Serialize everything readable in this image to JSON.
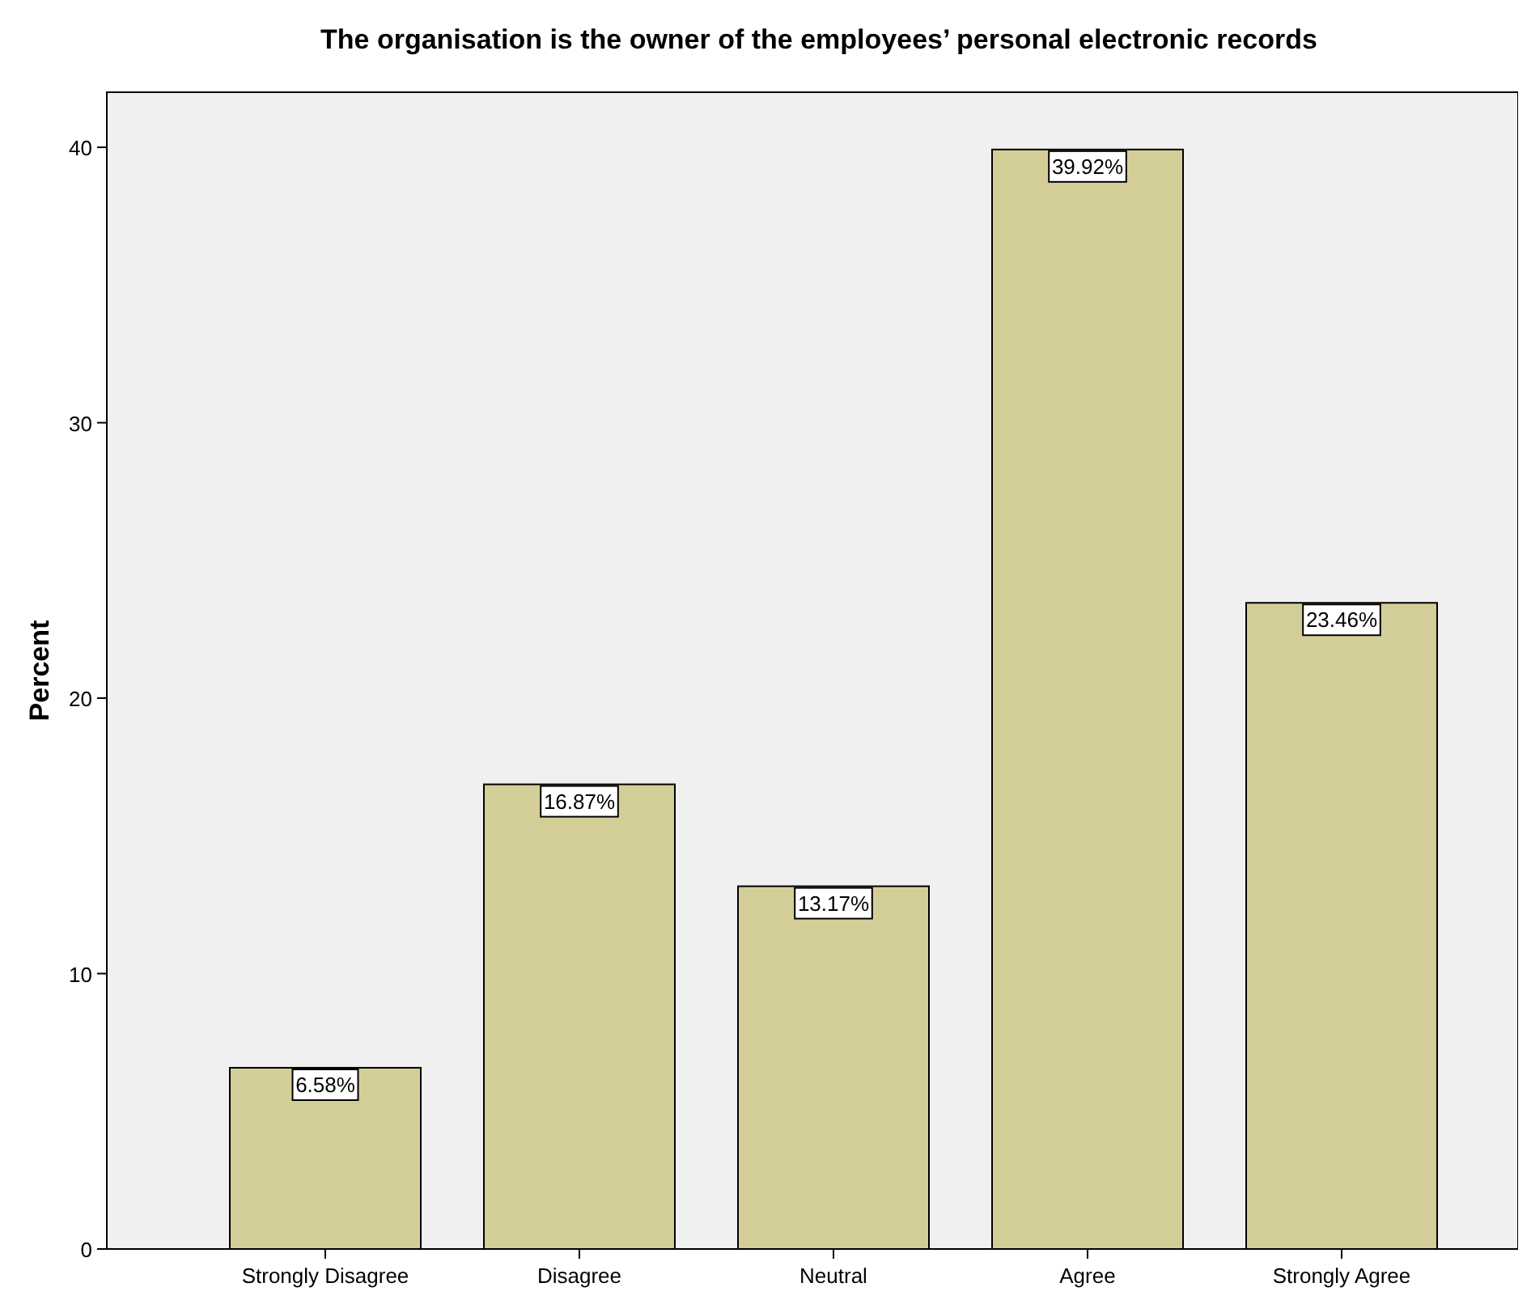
{
  "chart_data": {
    "type": "bar",
    "title": "The organisation is the owner of the employees’ personal electronic records",
    "ylabel": "Percent",
    "categories": [
      "Strongly Disagree",
      "Disagree",
      "Neutral",
      "Agree",
      "Strongly Agree"
    ],
    "values": [
      6.58,
      16.87,
      13.17,
      39.92,
      23.46
    ],
    "value_labels": [
      "6.58%",
      "16.87%",
      "13.17%",
      "39.92%",
      "23.46%"
    ],
    "color": "#d3ce97",
    "ylim": [
      0,
      42
    ],
    "yticks": [
      0,
      10,
      20,
      30,
      40
    ],
    "grid": false
  }
}
